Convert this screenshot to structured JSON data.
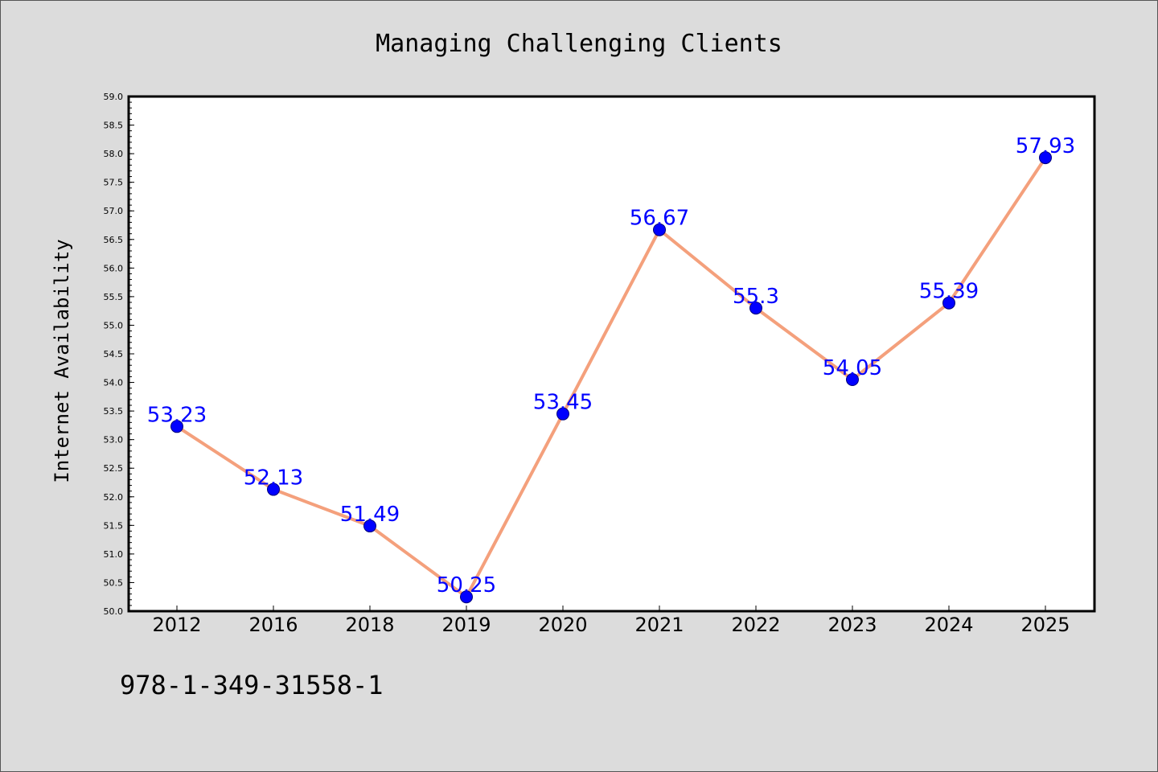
{
  "colors": {
    "background": "#dcdcdc",
    "plot_background": "#ffffff",
    "line": "#f4a07c",
    "marker": "#0000ff",
    "data_label": "#0000ff"
  },
  "footer_text": "978-1-349-31558-1",
  "chart_data": {
    "type": "line",
    "title": "Managing Challenging Clients",
    "xlabel": "",
    "ylabel": "Internet Availability",
    "categories": [
      "2012",
      "2016",
      "2018",
      "2019",
      "2020",
      "2021",
      "2022",
      "2023",
      "2024",
      "2025"
    ],
    "series": [
      {
        "values": [
          53.23,
          52.13,
          51.49,
          50.25,
          53.45,
          56.67,
          55.3,
          54.05,
          55.39,
          57.93
        ],
        "data_labels": [
          "53.23",
          "52.13",
          "51.49",
          "50.25",
          "53.45",
          "56.67",
          "55.3",
          "54.05",
          "55.39",
          "57.93"
        ]
      }
    ],
    "ylim": [
      50.0,
      59.0
    ],
    "yticks": [
      "50.0",
      "50.5",
      "51.0",
      "51.5",
      "52.0",
      "52.5",
      "53.0",
      "53.5",
      "54.0",
      "54.5",
      "55.0",
      "55.5",
      "56.0",
      "56.5",
      "57.0",
      "57.5",
      "58.0",
      "58.5",
      "59.0"
    ],
    "grid": false,
    "legend": "none",
    "markers": true
  }
}
